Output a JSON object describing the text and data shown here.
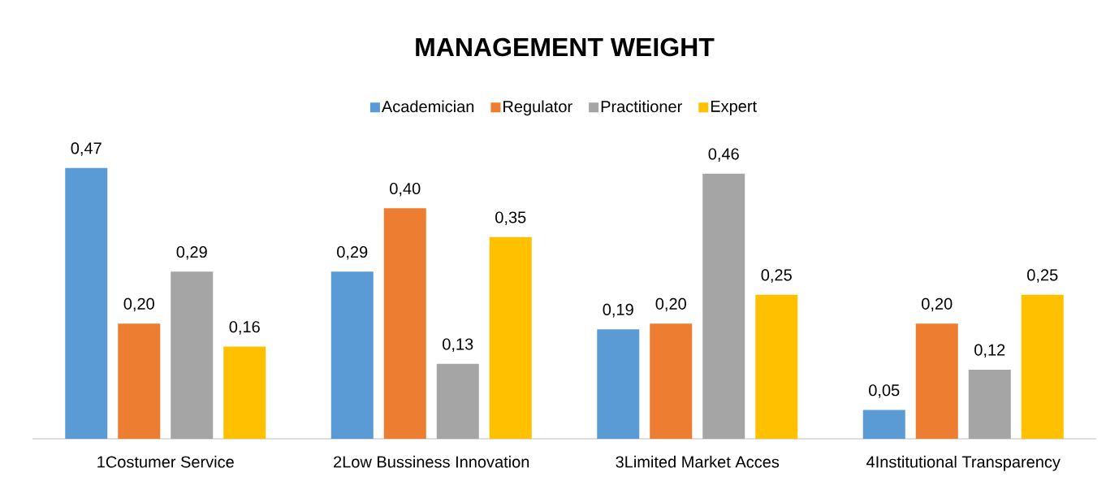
{
  "chart_data": {
    "type": "bar",
    "title": "MANAGEMENT WEIGHT",
    "categories": [
      "1Costumer Service",
      "2Low Bussiness Innovation",
      "3Limited Market Acces",
      "4Institutional Transparency"
    ],
    "series": [
      {
        "name": "Academician",
        "color": "#5b9bd5",
        "values": [
          0.47,
          0.29,
          0.19,
          0.05
        ],
        "value_labels": [
          "0,47",
          "0,29",
          "0,19",
          "0,05"
        ]
      },
      {
        "name": "Regulator",
        "color": "#ed7d31",
        "values": [
          0.2,
          0.4,
          0.2,
          0.2
        ],
        "value_labels": [
          "0,20",
          "0,40",
          "0,20",
          "0,20"
        ]
      },
      {
        "name": "Practitioner",
        "color": "#a5a5a5",
        "values": [
          0.29,
          0.13,
          0.46,
          0.12
        ],
        "value_labels": [
          "0,29",
          "0,13",
          "0,46",
          "0,12"
        ]
      },
      {
        "name": "Expert",
        "color": "#ffc000",
        "values": [
          0.16,
          0.35,
          0.25,
          0.25
        ],
        "value_labels": [
          "0,16",
          "0,35",
          "0,25",
          "0,25"
        ]
      }
    ],
    "legend": "top",
    "tick_labels": "x"
  }
}
